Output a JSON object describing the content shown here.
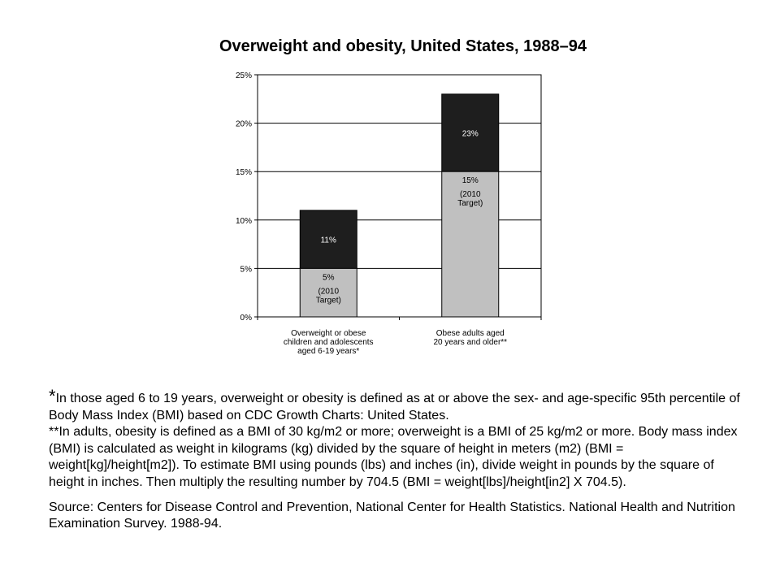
{
  "chart_data": {
    "type": "bar",
    "title": "Overweight and obesity, United States, 1988–94",
    "categories": [
      [
        "Overweight or obese",
        "children and adolescents",
        "aged 6-19 years*"
      ],
      [
        "Obese adults aged",
        "20 years and older**"
      ]
    ],
    "values": [
      11,
      23
    ],
    "value_labels": [
      "11%",
      "23%"
    ],
    "targets": [
      5,
      15
    ],
    "target_labels": [
      [
        "5%",
        "(2010",
        "Target)"
      ],
      [
        "15%",
        "(2010",
        "Target)"
      ]
    ],
    "y_ticks": [
      "0%",
      "5%",
      "10%",
      "15%",
      "20%",
      "25%"
    ],
    "ylim": [
      0,
      25
    ],
    "grid": true,
    "colors": {
      "value_bar": "#1e1e1e",
      "target_bar": "#c0c0c0",
      "grid": "#000000"
    }
  },
  "footnotes": {
    "star": "*",
    "children": "In those aged 6 to 19 years, overweight or obesity is defined as at or above the sex- and age-specific 95th percentile of Body Mass Index (BMI) based on CDC Growth Charts: United States.",
    "adults": "**In adults, obesity is defined as a BMI of 30 kg/m2 or more; overweight is a BMI of 25 kg/m2 or more. Body mass index (BMI) is calculated as weight in kilograms (kg) divided by the square of height in meters (m2) (BMI = weight[kg]/height[m2]). To estimate BMI using pounds (lbs) and inches (in), divide weight in pounds by the square of height in inches. Then multiply the resulting number by 704.5 (BMI = weight[lbs]/height[in2] X 704.5).",
    "source": "Source:  Centers for Disease Control and Prevention, National Center for Health Statistics. National Health and Nutrition Examination Survey. 1988-94."
  }
}
